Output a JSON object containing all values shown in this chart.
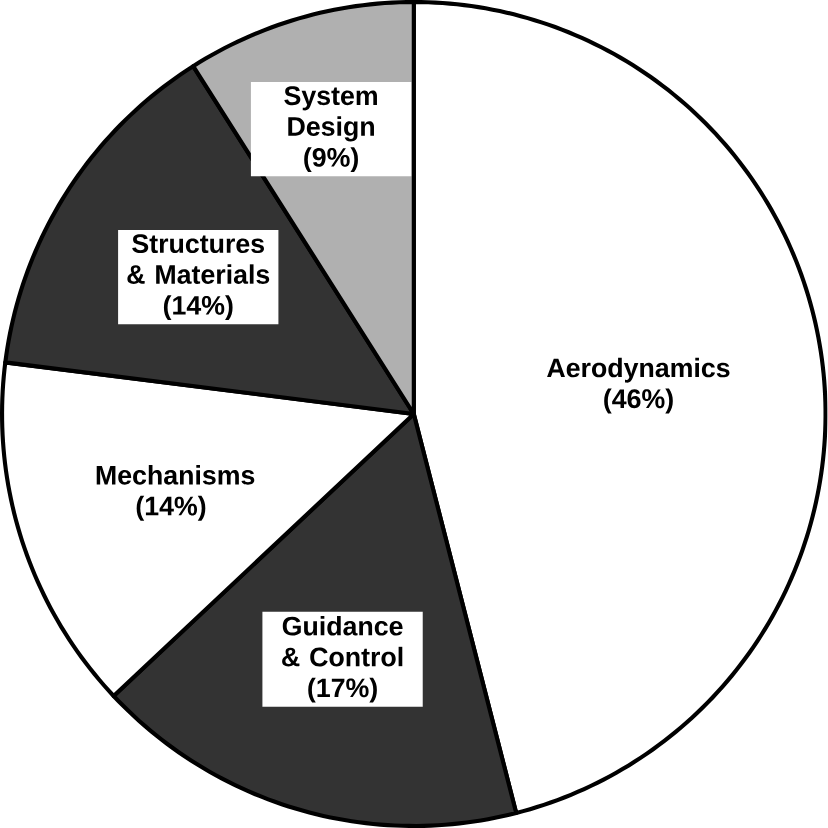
{
  "chart_data": {
    "type": "pie",
    "categories": [
      "Aerodynamics",
      "Guidance & Control",
      "Mechanisms",
      "Structures & Materials",
      "System Design"
    ],
    "values": [
      46,
      17,
      14,
      14,
      9
    ],
    "value_labels": [
      "(46%)",
      "(17%)",
      "(14%)",
      "(14%)",
      "(9%)"
    ],
    "colors": [
      "#ffffff",
      "#333333",
      "#ffffff",
      "#333333",
      "#b0b0b0"
    ]
  }
}
